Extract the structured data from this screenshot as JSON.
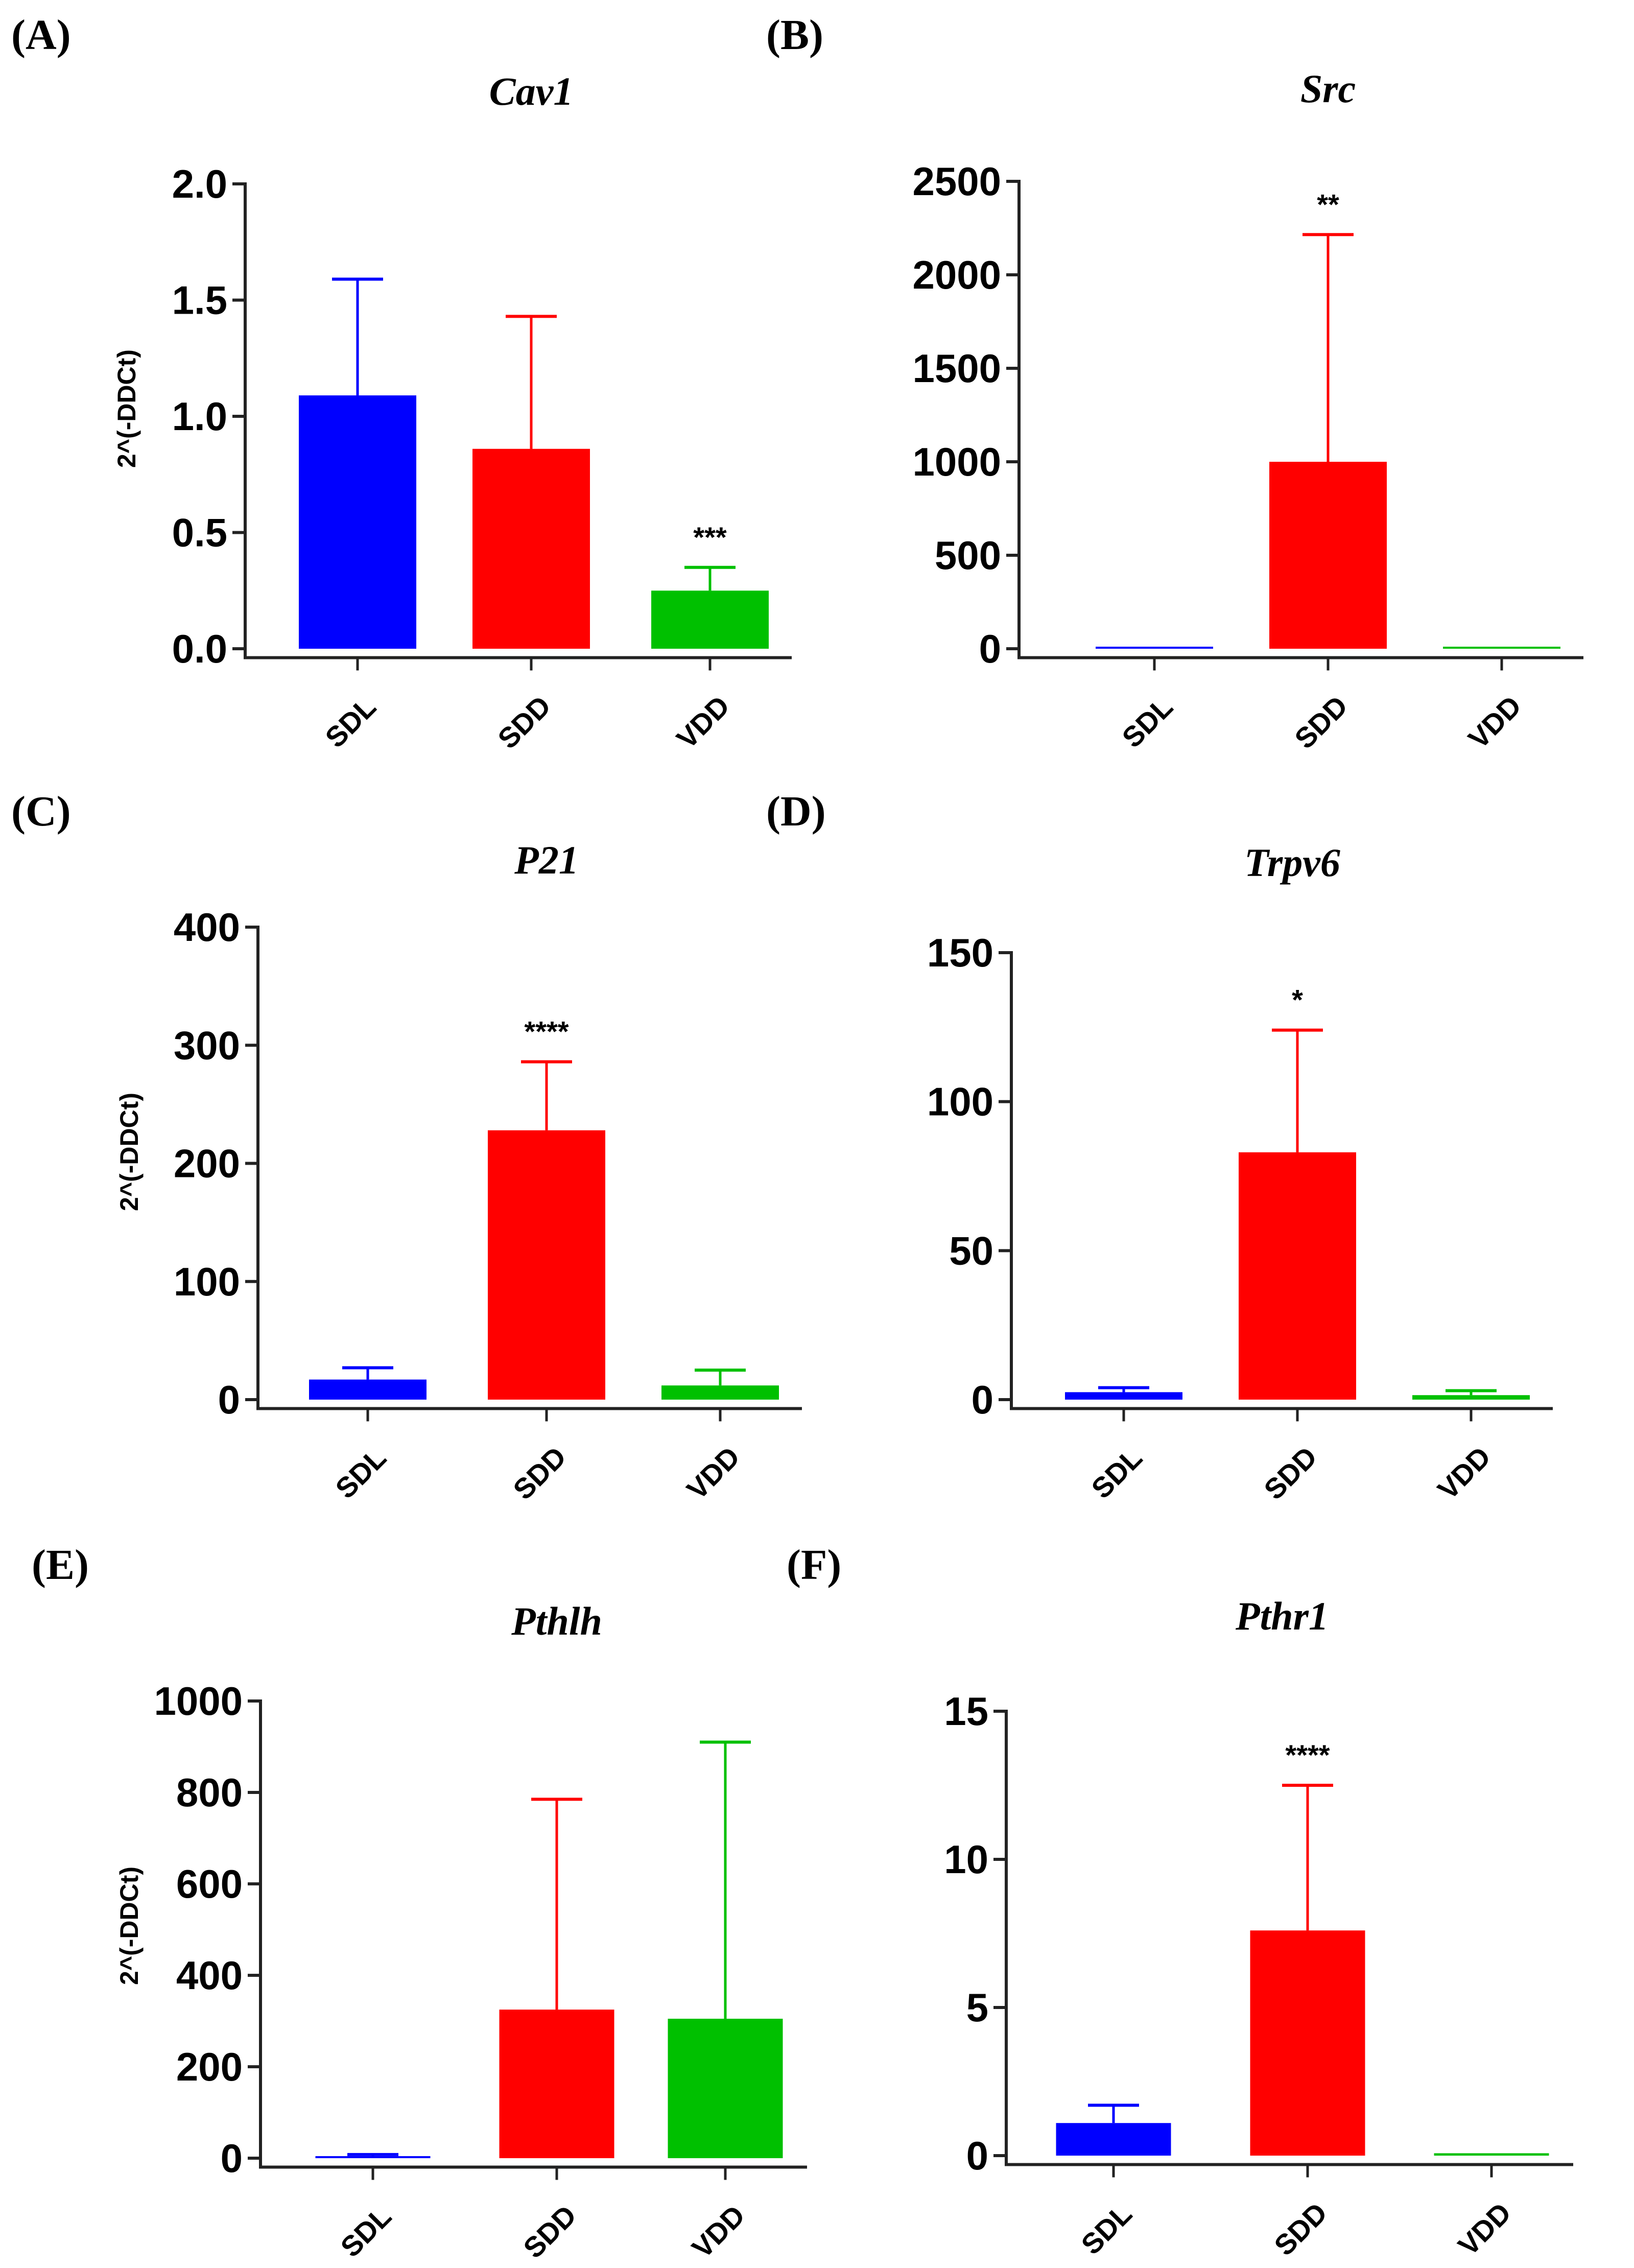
{
  "figure": {
    "categories": [
      "SDL",
      "SDD",
      "VDD"
    ],
    "colors": {
      "SDL": "#0000ff",
      "SDD": "#ff0000",
      "VDD": "#00c000"
    }
  },
  "chart_data": [
    {
      "panel": "(A)",
      "type": "bar",
      "title": "Cav1",
      "ylabel": "2^(-DDCt)",
      "categories": [
        "SDL",
        "SDD",
        "VDD"
      ],
      "values": [
        1.09,
        0.86,
        0.25
      ],
      "errors": [
        0.5,
        0.57,
        0.1
      ],
      "significance": [
        "",
        "",
        "***"
      ],
      "ylim": [
        0,
        2.0
      ],
      "yticks": [
        0,
        0.5,
        1.0,
        1.5,
        2.0
      ],
      "ytick_labels": [
        "0.0",
        "0.5",
        "1.0",
        "1.5",
        "2.0"
      ]
    },
    {
      "panel": "(B)",
      "type": "bar",
      "title": "Src",
      "ylabel": "",
      "categories": [
        "SDL",
        "SDD",
        "VDD"
      ],
      "values": [
        0,
        1000,
        2
      ],
      "errors": [
        0,
        1215,
        0
      ],
      "significance": [
        "",
        "**",
        ""
      ],
      "ylim": [
        0,
        2500
      ],
      "yticks": [
        0,
        500,
        1000,
        1500,
        2000,
        2500
      ],
      "ytick_labels": [
        "0",
        "500",
        "1000",
        "1500",
        "2000",
        "2500"
      ]
    },
    {
      "panel": "(C)",
      "type": "bar",
      "title": "P21",
      "ylabel": "2^(-DDCt)",
      "categories": [
        "SDL",
        "SDD",
        "VDD"
      ],
      "values": [
        17,
        228,
        12
      ],
      "errors": [
        10,
        58,
        13
      ],
      "significance": [
        "",
        "****",
        ""
      ],
      "ylim": [
        0,
        400
      ],
      "yticks": [
        0,
        100,
        200,
        300,
        400
      ],
      "ytick_labels": [
        "0",
        "100",
        "200",
        "300",
        "400"
      ]
    },
    {
      "panel": "(D)",
      "type": "bar",
      "title": "Trpv6",
      "ylabel": "",
      "categories": [
        "SDL",
        "SDD",
        "VDD"
      ],
      "values": [
        2.5,
        83,
        1.5
      ],
      "errors": [
        1.5,
        41,
        1.5
      ],
      "significance": [
        "",
        "*",
        ""
      ],
      "ylim": [
        0,
        150
      ],
      "yticks": [
        0,
        50,
        100,
        150
      ],
      "ytick_labels": [
        "0",
        "50",
        "100",
        "150"
      ]
    },
    {
      "panel": "(E)",
      "type": "bar",
      "title": "Pthlh",
      "ylabel": "2^(-DDCt)",
      "categories": [
        "SDL",
        "SDD",
        "VDD"
      ],
      "values": [
        2,
        325,
        305
      ],
      "errors": [
        6,
        460,
        605
      ],
      "significance": [
        "",
        "",
        ""
      ],
      "ylim": [
        0,
        1000
      ],
      "yticks": [
        0,
        200,
        400,
        600,
        800,
        1000
      ],
      "ytick_labels": [
        "0",
        "200",
        "400",
        "600",
        "800",
        "1000"
      ]
    },
    {
      "panel": "(F)",
      "type": "bar",
      "title": "Pthr1",
      "ylabel": "",
      "categories": [
        "SDL",
        "SDD",
        "VDD"
      ],
      "values": [
        1.1,
        7.6,
        0.08
      ],
      "errors": [
        0.6,
        4.9,
        0
      ],
      "significance": [
        "",
        "****",
        ""
      ],
      "ylim": [
        0,
        15
      ],
      "yticks": [
        0,
        5,
        10,
        15
      ],
      "ytick_labels": [
        "0",
        "5",
        "10",
        "15"
      ]
    }
  ]
}
